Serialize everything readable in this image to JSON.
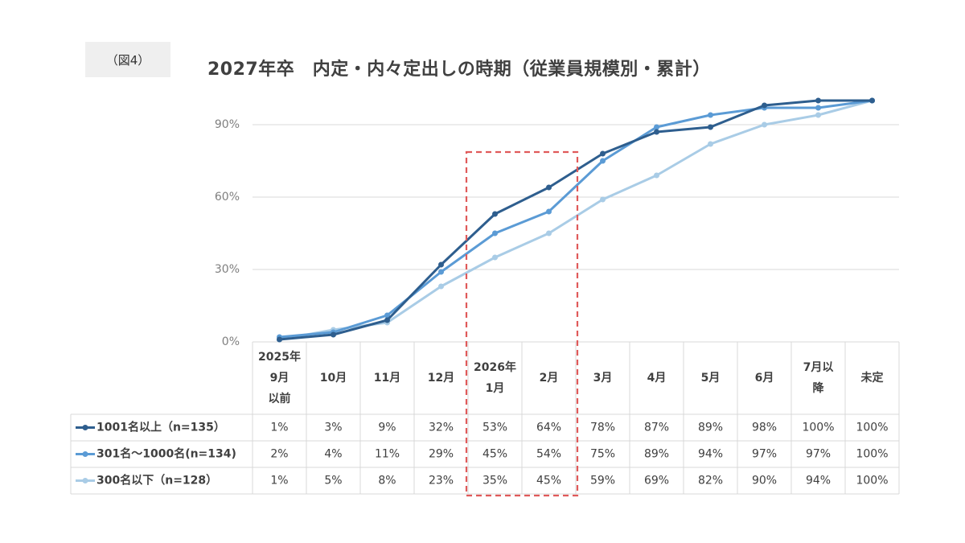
{
  "figure_label": "（図4）",
  "chart_data": {
    "type": "line",
    "title": "2027年卒　内定・内々定出しの時期（従業員規模別・累計）",
    "categories": [
      [
        "2025年",
        "9月",
        "以前"
      ],
      [
        "10月"
      ],
      [
        "11月"
      ],
      [
        "12月"
      ],
      [
        "2026年",
        "1月"
      ],
      [
        "2月"
      ],
      [
        "3月"
      ],
      [
        "4月"
      ],
      [
        "5月"
      ],
      [
        "6月"
      ],
      [
        "7月以",
        "降"
      ],
      [
        "未定"
      ]
    ],
    "y_ticks": [
      "0%",
      "30%",
      "60%",
      "90%"
    ],
    "ylim": [
      0,
      100
    ],
    "grid": true,
    "legend": "data-table",
    "highlight": {
      "categories": [
        4,
        5
      ],
      "style": "red dashed box"
    },
    "series": [
      {
        "name": "1001名以上（n=135）",
        "color": "#2e5e8e",
        "values": [
          1,
          3,
          9,
          32,
          53,
          64,
          78,
          87,
          89,
          98,
          100,
          100
        ],
        "labels": [
          "1%",
          "3%",
          "9%",
          "32%",
          "53%",
          "64%",
          "78%",
          "87%",
          "89%",
          "98%",
          "100%",
          "100%"
        ]
      },
      {
        "name": "301名～1000名(n=134)",
        "color": "#5b9bd5",
        "values": [
          2,
          4,
          11,
          29,
          45,
          54,
          75,
          89,
          94,
          97,
          97,
          100
        ],
        "labels": [
          "2%",
          "4%",
          "11%",
          "29%",
          "45%",
          "54%",
          "75%",
          "89%",
          "94%",
          "97%",
          "97%",
          "100%"
        ]
      },
      {
        "name": "300名以下（n=128）",
        "color": "#a9cce6",
        "values": [
          1,
          5,
          8,
          23,
          35,
          45,
          59,
          69,
          82,
          90,
          94,
          100
        ],
        "labels": [
          "1%",
          "5%",
          "8%",
          "23%",
          "35%",
          "45%",
          "59%",
          "69%",
          "82%",
          "90%",
          "94%",
          "100%"
        ]
      }
    ],
    "highlight_color": "#e05a5a"
  }
}
